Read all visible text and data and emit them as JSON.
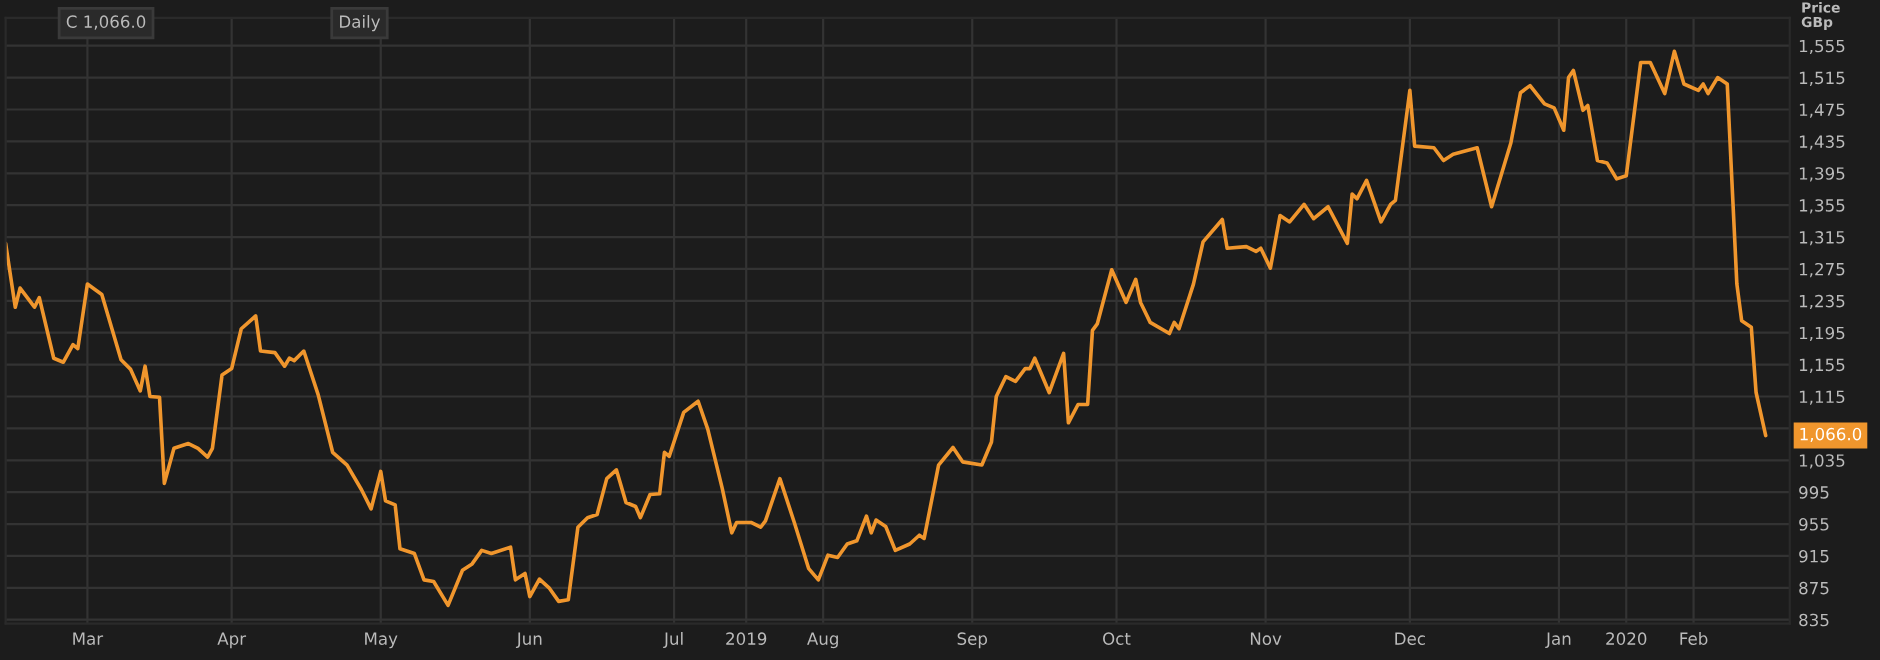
{
  "chart_data": {
    "type": "line",
    "ylabel": "Price\nGBp",
    "x": [
      "2019-02-26",
      "2019-02-28",
      "2019-03-01",
      "2019-03-04",
      "2019-03-05",
      "2019-03-08",
      "2019-03-10",
      "2019-03-12",
      "2019-03-13",
      "2019-03-15",
      "2019-03-18",
      "2019-03-22",
      "2019-03-24",
      "2019-03-26",
      "2019-03-27",
      "2019-03-28",
      "2019-03-30",
      "2019-03-31",
      "2019-04-02",
      "2019-04-05",
      "2019-04-07",
      "2019-04-09",
      "2019-04-10",
      "2019-04-12",
      "2019-04-14",
      "2019-04-16",
      "2019-04-19",
      "2019-04-20",
      "2019-04-23",
      "2019-04-25",
      "2019-04-26",
      "2019-04-27",
      "2019-04-29",
      "2019-05-02",
      "2019-05-05",
      "2019-05-08",
      "2019-05-11",
      "2019-05-13",
      "2019-05-15",
      "2019-05-16",
      "2019-05-18",
      "2019-05-19",
      "2019-05-22",
      "2019-05-24",
      "2019-05-26",
      "2019-05-29",
      "2019-06-01",
      "2019-06-03",
      "2019-06-05",
      "2019-06-07",
      "2019-06-11",
      "2019-06-12",
      "2019-06-14",
      "2019-06-15",
      "2019-06-17",
      "2019-06-19",
      "2019-06-21",
      "2019-06-23",
      "2019-06-25",
      "2019-06-27",
      "2019-06-29",
      "2019-07-01",
      "2019-07-03",
      "2019-07-05",
      "2019-07-07",
      "2019-07-08",
      "2019-07-10",
      "2019-07-12",
      "2019-07-13",
      "2019-07-14",
      "2019-07-17",
      "2019-07-20",
      "2019-07-22",
      "2019-07-25",
      "2019-07-27",
      "2019-07-28",
      "2019-07-31",
      "2019-08-02",
      "2019-08-03",
      "2019-08-06",
      "2019-08-09",
      "2019-08-12",
      "2019-08-14",
      "2019-08-16",
      "2019-08-18",
      "2019-08-20",
      "2019-08-22",
      "2019-08-24",
      "2019-08-25",
      "2019-08-26",
      "2019-08-28",
      "2019-08-30",
      "2019-09-02",
      "2019-09-04",
      "2019-09-05",
      "2019-09-08",
      "2019-09-11",
      "2019-09-13",
      "2019-09-17",
      "2019-09-19",
      "2019-09-20",
      "2019-09-22",
      "2019-09-24",
      "2019-09-26",
      "2019-09-27",
      "2019-09-28",
      "2019-10-01",
      "2019-10-04",
      "2019-10-05",
      "2019-10-07",
      "2019-10-09",
      "2019-10-10",
      "2019-10-11",
      "2019-10-14",
      "2019-10-17",
      "2019-10-19",
      "2019-10-20",
      "2019-10-22",
      "2019-10-26",
      "2019-10-27",
      "2019-10-28",
      "2019-10-31",
      "2019-11-02",
      "2019-11-06",
      "2019-11-07",
      "2019-11-11",
      "2019-11-13",
      "2019-11-14",
      "2019-11-16",
      "2019-11-18",
      "2019-11-20",
      "2019-11-23",
      "2019-11-25",
      "2019-11-28",
      "2019-12-02",
      "2019-12-03",
      "2019-12-04",
      "2019-12-06",
      "2019-12-09",
      "2019-12-11",
      "2019-12-12",
      "2019-12-15",
      "2019-12-16",
      "2019-12-20",
      "2019-12-22",
      "2019-12-24",
      "2019-12-29",
      "2020-01-01",
      "2020-01-05",
      "2020-01-07",
      "2020-01-09",
      "2020-01-12",
      "2020-01-14",
      "2020-01-16",
      "2020-01-17",
      "2020-01-18",
      "2020-01-20",
      "2020-01-21",
      "2020-01-23",
      "2020-01-25",
      "2020-01-27",
      "2020-01-29",
      "2020-02-01",
      "2020-02-03",
      "2020-02-06",
      "2020-02-08",
      "2020-02-10",
      "2020-02-13",
      "2020-02-14",
      "2020-02-15",
      "2020-02-17",
      "2020-02-19",
      "2020-02-21",
      "2020-02-22",
      "2020-02-24",
      "2020-02-25",
      "2020-02-27"
    ],
    "series": [
      {
        "color": "#f0962d",
        "values": [
          1307,
          1227,
          1251,
          1227,
          1239,
          1163,
          1158,
          1180,
          1175,
          1256,
          1243,
          1161,
          1149,
          1122,
          1153,
          1115,
          1114,
          1006,
          1050,
          1056,
          1050,
          1039,
          1050,
          1142,
          1150,
          1200,
          1216,
          1172,
          1170,
          1153,
          1163,
          1160,
          1172,
          1117,
          1045,
          1029,
          998,
          974,
          1021,
          984,
          979,
          924,
          918,
          885,
          883,
          853,
          897,
          905,
          922,
          918,
          926,
          885,
          893,
          864,
          886,
          875,
          858,
          860,
          951,
          963,
          967,
          1012,
          1023,
          982,
          977,
          963,
          992,
          993,
          1045,
          1040,
          1095,
          1109,
          1074,
          1000,
          944,
          957,
          957,
          951,
          959,
          1012,
          957,
          899,
          885,
          916,
          913,
          930,
          934,
          965,
          944,
          960,
          952,
          922,
          930,
          941,
          937,
          1029,
          1051,
          1033,
          1029,
          1058,
          1115,
          1140,
          1134,
          1150,
          1150,
          1163,
          1120,
          1169,
          1082,
          1105,
          1105,
          1198,
          1206,
          1274,
          1233,
          1262,
          1233,
          1208,
          1194,
          1208,
          1200,
          1256,
          1309,
          1337,
          1301,
          1303,
          1297,
          1301,
          1276,
          1342,
          1334,
          1356,
          1338,
          1353,
          1307,
          1369,
          1363,
          1386,
          1334,
          1356,
          1361,
          1499,
          1429,
          1427,
          1411,
          1419,
          1427,
          1353,
          1433,
          1496,
          1505,
          1482,
          1477,
          1449,
          1515,
          1524,
          1474,
          1480,
          1411,
          1408,
          1388,
          1392,
          1534,
          1534,
          1495,
          1548,
          1507,
          1499,
          1507,
          1495,
          1515,
          1507,
          1256,
          1210,
          1202,
          1120,
          1066
        ]
      }
    ],
    "xlim": [
      "2019-02-26",
      "2020-03-03"
    ],
    "xticks": [
      {
        "value": "2019-03-15",
        "label": "Mar"
      },
      {
        "value": "2019-04-14",
        "label": "Apr"
      },
      {
        "value": "2019-05-15",
        "label": "May"
      },
      {
        "value": "2019-06-15",
        "label": "Jun"
      },
      {
        "value": "2019-07-15",
        "label": "Jul"
      },
      {
        "value": "2019-08-15",
        "label": "Aug"
      },
      {
        "value": "2019-09-15",
        "label": "Sep"
      },
      {
        "value": "2019-10-15",
        "label": "Oct"
      },
      {
        "value": "2019-11-15",
        "label": "Nov"
      },
      {
        "value": "2019-12-15",
        "label": "Dec"
      },
      {
        "value": "2019-07-30",
        "label": "2019"
      },
      {
        "value": "2020-01-15",
        "label": "Jan"
      },
      {
        "value": "2020-01-29",
        "label": "2020"
      },
      {
        "value": "2020-02-12",
        "label": "Feb"
      }
    ],
    "ylim": [
      830,
      1590
    ],
    "yticks": [
      {
        "value": 835,
        "label": "835"
      },
      {
        "value": 875,
        "label": "875"
      },
      {
        "value": 915,
        "label": "915"
      },
      {
        "value": 955,
        "label": "955"
      },
      {
        "value": 995,
        "label": "995"
      },
      {
        "value": 1035,
        "label": "1,035"
      },
      {
        "value": 1075,
        "label": null
      },
      {
        "value": 1115,
        "label": "1,115"
      },
      {
        "value": 1155,
        "label": "1,155"
      },
      {
        "value": 1195,
        "label": "1,195"
      },
      {
        "value": 1235,
        "label": "1,235"
      },
      {
        "value": 1275,
        "label": "1,275"
      },
      {
        "value": 1315,
        "label": "1,315"
      },
      {
        "value": 1355,
        "label": "1,355"
      },
      {
        "value": 1395,
        "label": "1,395"
      },
      {
        "value": 1435,
        "label": "1,435"
      },
      {
        "value": 1475,
        "label": "1,475"
      },
      {
        "value": 1515,
        "label": "1,515"
      },
      {
        "value": 1555,
        "label": "1,555"
      }
    ],
    "grid": true,
    "marker": "none",
    "line_style": "solid",
    "annotations": [
      "C 1,066.0",
      "Daily",
      "1,066.0"
    ]
  }
}
